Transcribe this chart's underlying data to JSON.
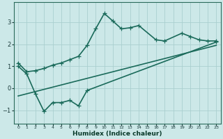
{
  "xlabel": "Humidex (Indice chaleur)",
  "bg_color": "#cce8e8",
  "grid_color": "#aacfcf",
  "line_color": "#1a6a5a",
  "xlim": [
    -0.5,
    23.5
  ],
  "ylim": [
    -1.6,
    3.9
  ],
  "yticks": [
    -1,
    0,
    1,
    2,
    3
  ],
  "xticks": [
    0,
    1,
    2,
    3,
    4,
    5,
    6,
    7,
    8,
    9,
    10,
    11,
    12,
    13,
    14,
    15,
    16,
    17,
    18,
    19,
    20,
    21,
    22,
    23
  ],
  "line1_x": [
    0,
    1,
    2,
    3,
    4,
    5,
    6,
    7,
    8,
    9,
    10,
    11,
    12,
    13,
    14,
    16,
    17,
    19,
    20,
    21,
    22,
    23
  ],
  "line1_y": [
    1.15,
    0.75,
    0.8,
    0.9,
    1.05,
    1.15,
    1.3,
    1.45,
    1.95,
    2.7,
    3.4,
    3.05,
    2.7,
    2.75,
    2.85,
    2.2,
    2.15,
    2.5,
    2.35,
    2.2,
    2.15,
    2.15
  ],
  "line2_x": [
    0,
    1,
    2,
    3,
    4,
    5,
    6,
    7,
    8,
    23
  ],
  "line2_y": [
    1.0,
    0.65,
    -0.25,
    -1.05,
    -0.65,
    -0.65,
    -0.55,
    -0.8,
    -0.1,
    2.1
  ],
  "line3_x": [
    0,
    23
  ],
  "line3_y": [
    -0.35,
    1.95
  ],
  "line_width": 1.2,
  "marker_size": 4
}
